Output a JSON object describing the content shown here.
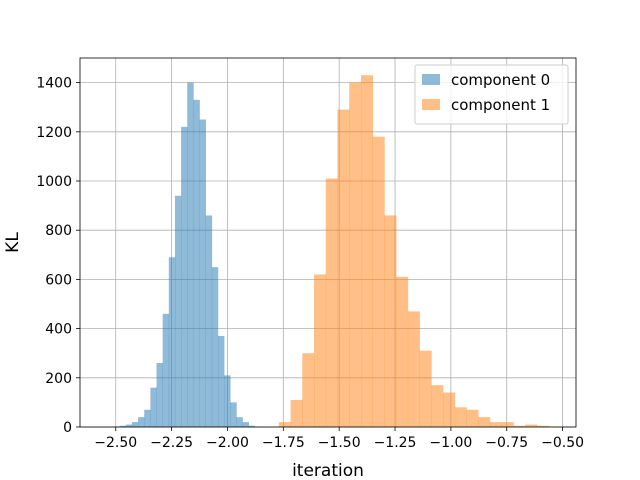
{
  "chart_data": {
    "type": "histogram",
    "xlabel": "iteration",
    "ylabel": "KL",
    "xlim": [
      -2.66,
      -0.44
    ],
    "ylim": [
      0,
      1500
    ],
    "xticks": [
      -2.5,
      -2.25,
      -2.0,
      -1.75,
      -1.5,
      -1.25,
      -1.0,
      -0.75,
      -0.5
    ],
    "xtick_labels": [
      "−2.50",
      "−2.25",
      "−2.00",
      "−1.75",
      "−1.50",
      "−1.25",
      "−1.00",
      "−0.75",
      "−0.50"
    ],
    "yticks": [
      0,
      200,
      400,
      600,
      800,
      1000,
      1200,
      1400
    ],
    "ytick_labels": [
      "0",
      "200",
      "400",
      "600",
      "800",
      "1000",
      "1200",
      "1400"
    ],
    "grid": true,
    "legend_position": "top-right",
    "series": [
      {
        "name": "component 0",
        "color": "#1f77b4",
        "alpha": 0.5,
        "bin_width": 0.0275,
        "bin_starts": [
          -2.51,
          -2.4825,
          -2.455,
          -2.4275,
          -2.4,
          -2.3725,
          -2.345,
          -2.3175,
          -2.29,
          -2.2625,
          -2.235,
          -2.2075,
          -2.18,
          -2.1525,
          -2.125,
          -2.0975,
          -2.07,
          -2.0425,
          -2.015,
          -1.9875,
          -1.96,
          -1.9325,
          -1.905,
          -1.8775,
          -1.85
        ],
        "counts": [
          2,
          5,
          10,
          20,
          40,
          70,
          160,
          260,
          460,
          690,
          940,
          1220,
          1400,
          1330,
          1250,
          860,
          650,
          370,
          210,
          100,
          40,
          20,
          5,
          2,
          1
        ]
      },
      {
        "name": "component 1",
        "color": "#ff7f0e",
        "alpha": 0.5,
        "bin_width": 0.0525,
        "bin_starts": [
          -1.77,
          -1.7175,
          -1.665,
          -1.6125,
          -1.56,
          -1.5075,
          -1.455,
          -1.4025,
          -1.35,
          -1.2975,
          -1.245,
          -1.1925,
          -1.14,
          -1.0875,
          -1.035,
          -0.9825,
          -0.93,
          -0.8775,
          -0.825,
          -0.7725,
          -0.72,
          -0.6675,
          -0.615,
          -0.5625
        ],
        "counts": [
          20,
          110,
          300,
          620,
          1010,
          1290,
          1400,
          1430,
          1180,
          860,
          610,
          470,
          310,
          170,
          140,
          80,
          70,
          40,
          20,
          20,
          5,
          10,
          5,
          2
        ]
      }
    ]
  }
}
